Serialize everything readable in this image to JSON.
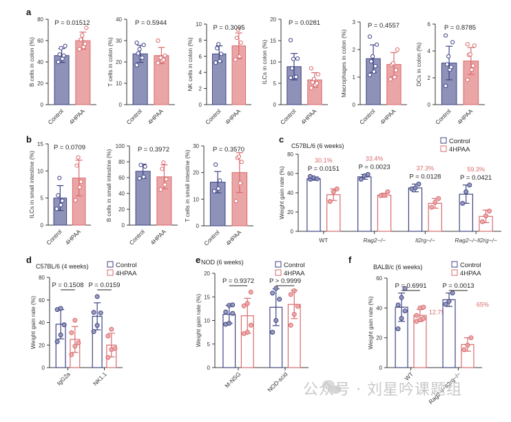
{
  "colors": {
    "control_fill": "#8e92b8",
    "control_stroke": "#3c4283",
    "treat_fill": "#eaa5a6",
    "treat_stroke": "#d9696c",
    "axis": "#333333"
  },
  "watermark": "公众号 · 刘星吟课题组",
  "chart_data": [
    {
      "id": "a1",
      "panel": "a",
      "type": "bar",
      "style": "filled",
      "ylabel": "B cells in colon (%)",
      "ylim": [
        0,
        80
      ],
      "yticks": [
        0,
        20,
        40,
        60,
        80
      ],
      "categories": [
        "Control",
        "4HPAA"
      ],
      "p_values": [
        "P = 0.01512"
      ],
      "series": [
        {
          "name": "Control",
          "mean": 46,
          "sd": 6.5,
          "points": [
            40,
            43,
            46,
            47,
            53,
            55
          ]
        },
        {
          "name": "4HPAA",
          "mean": 60,
          "sd": 8,
          "points": [
            52,
            54,
            57,
            61,
            65,
            72
          ]
        }
      ]
    },
    {
      "id": "a2",
      "panel": "",
      "type": "bar",
      "style": "filled",
      "ylabel": "T cells in colon (%)",
      "ylim": [
        0,
        40
      ],
      "yticks": [
        0,
        10,
        20,
        30,
        40
      ],
      "categories": [
        "Control",
        "4HPAA"
      ],
      "p_values": [
        "P = 0.5944"
      ],
      "series": [
        {
          "name": "Control",
          "mean": 23.8,
          "sd": 4,
          "points": [
            18.5,
            22,
            22,
            24,
            26,
            28,
            29
          ]
        },
        {
          "name": "4HPAA",
          "mean": 23,
          "sd": 3.8,
          "points": [
            19.5,
            20.5,
            21,
            22,
            22,
            23,
            30
          ]
        }
      ]
    },
    {
      "id": "a3",
      "panel": "",
      "type": "bar",
      "style": "filled",
      "ylabel": "NK cells in colon (%)",
      "ylim": [
        0,
        10
      ],
      "yticks": [
        0,
        2,
        4,
        6,
        8,
        10
      ],
      "categories": [
        "Control",
        "4HPAA"
      ],
      "p_values": [
        "P = 0.3095"
      ],
      "series": [
        {
          "name": "Control",
          "mean": 6.3,
          "sd": 1.0,
          "points": [
            5.2,
            5.4,
            6.3,
            7.0,
            7.5
          ]
        },
        {
          "name": "4HPAA",
          "mean": 7.3,
          "sd": 1.6,
          "points": [
            5.6,
            6.0,
            7.7,
            8.3,
            9.3
          ]
        }
      ]
    },
    {
      "id": "a4",
      "panel": "",
      "type": "bar",
      "style": "filled",
      "ylabel": "ILCs in colon (%)",
      "ylim": [
        0,
        20
      ],
      "yticks": [
        0,
        5,
        10,
        15,
        20
      ],
      "categories": [
        "Control",
        "4HPAA"
      ],
      "p_values": [
        "P = 0.0281"
      ],
      "series": [
        {
          "name": "Control",
          "mean": 8.9,
          "sd": 3.1,
          "points": [
            6.3,
            6.5,
            6.5,
            8.5,
            10.7,
            10.8,
            15.1
          ]
        },
        {
          "name": "4HPAA",
          "mean": 5.8,
          "sd": 1.7,
          "points": [
            3.9,
            4.6,
            5.0,
            5.2,
            6.0,
            7.1,
            8.5
          ]
        }
      ]
    },
    {
      "id": "a5",
      "panel": "",
      "type": "bar",
      "style": "filled",
      "ylabel": "Macrophages in colon (%)",
      "ylim": [
        0,
        3
      ],
      "yticks": [
        0,
        1,
        2,
        3
      ],
      "categories": [
        "Control",
        "4HPAA"
      ],
      "p_values": [
        "P = 0.4557"
      ],
      "series": [
        {
          "name": "Control",
          "mean": 1.67,
          "sd": 0.5,
          "points": [
            1.08,
            1.2,
            1.4,
            1.57,
            1.75,
            2.18,
            2.47
          ]
        },
        {
          "name": "4HPAA",
          "mean": 1.46,
          "sd": 0.43,
          "points": [
            0.92,
            1.0,
            1.25,
            1.45,
            1.5,
            2.0
          ]
        }
      ]
    },
    {
      "id": "a6",
      "panel": "",
      "type": "bar",
      "style": "filled",
      "ylabel": "DCs in colon (%)",
      "ylim": [
        0,
        6
      ],
      "yticks": [
        0,
        2,
        4,
        6
      ],
      "categories": [
        "Control",
        "4HPAA"
      ],
      "p_values": [
        "P = 0.8785"
      ],
      "series": [
        {
          "name": "Control",
          "mean": 3.1,
          "sd": 1.25,
          "points": [
            1.4,
            2.6,
            2.8,
            3.0,
            3.6,
            4.65,
            5.15
          ]
        },
        {
          "name": "4HPAA",
          "mean": 3.25,
          "sd": 1.0,
          "points": [
            1.85,
            2.6,
            2.9,
            3.7,
            3.75,
            4.4,
            4.5
          ]
        }
      ]
    },
    {
      "id": "b1",
      "panel": "b",
      "type": "bar",
      "style": "filled",
      "ylabel": "ILCs in small intestine (%)",
      "ylim": [
        0,
        15
      ],
      "yticks": [
        0,
        5,
        10,
        15
      ],
      "categories": [
        "Control",
        "4HPAA"
      ],
      "p_values": [
        "P = 0.0709"
      ],
      "series": [
        {
          "name": "Control",
          "mean": 5.0,
          "sd": 2.3,
          "points": [
            3.0,
            3.7,
            4.5,
            5.5,
            8.7
          ]
        },
        {
          "name": "4HPAA",
          "mean": 8.7,
          "sd": 3.3,
          "points": [
            4.6,
            7.0,
            8.0,
            11.0,
            12.5
          ]
        }
      ]
    },
    {
      "id": "b2",
      "panel": "",
      "type": "bar",
      "style": "filled",
      "ylabel": "B cells in small intestine (%)",
      "ylim": [
        0,
        100
      ],
      "yticks": [
        0,
        20,
        40,
        60,
        80,
        100
      ],
      "categories": [
        "Control",
        "4HPAA"
      ],
      "p_values": [
        "P = 0.3972"
      ],
      "series": [
        {
          "name": "Control",
          "mean": 68,
          "sd": 9,
          "points": [
            59,
            61,
            74,
            76
          ]
        },
        {
          "name": "4HPAA",
          "mean": 61,
          "sd": 15,
          "points": [
            45,
            51,
            58,
            71,
            79
          ]
        }
      ]
    },
    {
      "id": "b3",
      "panel": "",
      "type": "bar",
      "style": "filled",
      "ylabel": "T cells in small intestine (%)",
      "ylim": [
        0,
        30
      ],
      "yticks": [
        0,
        10,
        20,
        30
      ],
      "categories": [
        "Control",
        "4HPAA"
      ],
      "p_values": [
        "P = 0.3570"
      ],
      "series": [
        {
          "name": "Control",
          "mean": 16.4,
          "sd": 4,
          "points": [
            13.0,
            14.0,
            17.0,
            23.0
          ]
        },
        {
          "name": "4HPAA",
          "mean": 20,
          "sd": 7.5,
          "points": [
            9.3,
            16.0,
            24.0,
            25.5,
            26.0
          ]
        }
      ]
    },
    {
      "id": "c",
      "panel": "c",
      "type": "bar",
      "style": "open",
      "subtitle": "C57BL/6 (6 weeks)",
      "ylabel": "Weight gain rate (%)",
      "ylim": [
        0,
        80
      ],
      "yticks": [
        0,
        20,
        40,
        60,
        80
      ],
      "categories": [
        "WT",
        "Rag2−/−",
        "Il2rg−/−",
        "Rag2−/−Il2rg−/−"
      ],
      "p_values": [
        "P = 0.0151",
        "P = 0.0023",
        "P = 0.0128",
        "P = 0.0421"
      ],
      "percent_labels": [
        "30.1%",
        "33.4%",
        "37.3%",
        "59.3%"
      ],
      "legend": [
        "Control",
        "4HPAA"
      ],
      "series": [
        {
          "name": "Control",
          "means": [
            54.5,
            56.5,
            45,
            38.5
          ],
          "sds": [
            1.5,
            2.5,
            4,
            9.5
          ],
          "points": [
            [
              54,
              55.5,
              54.5,
              57
            ],
            [
              54,
              57.5,
              59
            ],
            [
              44,
              45,
              49
            ],
            [
              29,
              41,
              48
            ]
          ]
        },
        {
          "name": "4HPAA",
          "means": [
            38,
            37.5,
            29,
            15.5
          ],
          "sds": [
            6,
            2,
            5,
            6.5
          ],
          "points": [
            [
              31,
              41,
              44
            ],
            [
              37,
              37.5,
              41
            ],
            [
              25,
              30,
              34
            ],
            [
              10,
              16,
              21
            ]
          ]
        }
      ]
    },
    {
      "id": "d",
      "panel": "d",
      "type": "bar",
      "style": "open",
      "subtitle": "C57BL/6 (4 weeks)",
      "ylabel": "Weight gain rate (%)",
      "ylim": [
        0,
        80
      ],
      "yticks": [
        0,
        20,
        40,
        60,
        80
      ],
      "categories": [
        "IgG2a",
        "NK1.1"
      ],
      "p_values": [
        "P = 0.1508",
        "P = 0.0159"
      ],
      "legend": [
        "Control",
        "4HPAA"
      ],
      "series": [
        {
          "name": "Control",
          "means": [
            38.5,
            45.5
          ],
          "sds": [
            13,
            12
          ],
          "points": [
            [
              23,
              29,
              38,
              51.5,
              52.5
            ],
            [
              32,
              37.5,
              48.5,
              49,
              63
            ]
          ]
        },
        {
          "name": "4HPAA",
          "means": [
            25,
            20
          ],
          "sds": [
            11.5,
            10.5
          ],
          "points": [
            [
              11.5,
              19,
              22,
              31,
              42
            ],
            [
              9,
              16,
              17,
              28,
              34
            ]
          ]
        }
      ]
    },
    {
      "id": "e",
      "panel": "e",
      "type": "bar",
      "style": "open",
      "subtitle": "NOD (6 weeks)",
      "ylabel": "Weight gain rate (%)",
      "ylim": [
        0,
        20
      ],
      "yticks": [
        0,
        5,
        10,
        15,
        20
      ],
      "categories": [
        "M-NSG",
        "NOD-scid"
      ],
      "p_values": [
        "P = 0.9372",
        "P > 0.9999"
      ],
      "legend": [
        "Control",
        "4HPAA"
      ],
      "series": [
        {
          "name": "Control",
          "means": [
            11.3,
            12.8
          ],
          "sds": [
            1.9,
            3.9
          ],
          "points": [
            [
              9.2,
              9.4,
              11.5,
              11.8,
              13.2,
              13.3
            ],
            [
              7.5,
              10.0,
              14.5,
              15.8,
              16.8
            ]
          ]
        },
        {
          "name": "4HPAA",
          "means": [
            11,
            13.4
          ],
          "sds": [
            3.7,
            3.0
          ],
          "points": [
            [
              7.2,
              7.5,
              9.0,
              13.1,
              13.6,
              16.0
            ],
            [
              9.0,
              11.3,
              13.0,
              15.5,
              16.3
            ]
          ]
        }
      ]
    },
    {
      "id": "f",
      "panel": "f",
      "type": "bar",
      "style": "open",
      "subtitle": "BALB/c (6 weeks)",
      "ylabel": "Weight gain rate (%)",
      "ylim": [
        0,
        60
      ],
      "yticks": [
        0,
        20,
        40,
        60
      ],
      "categories": [
        "WT",
        "Rag2−/−Il2rg−/−"
      ],
      "p_values": [
        "P = 0.6991",
        "P = 0.0013"
      ],
      "percent_labels": [
        "12.79%",
        "65%"
      ],
      "legend": [
        "Control",
        "4HPAA"
      ],
      "series": [
        {
          "name": "Control",
          "means": [
            40.5,
            45.5
          ],
          "sds": [
            9.5,
            4.5
          ],
          "points": [
            [
              26,
              33,
              38,
              42,
              47,
              53
            ],
            [
              42.5,
              44.5,
              50
            ]
          ]
        },
        {
          "name": "4HPAA",
          "means": [
            35,
            15.5
          ],
          "sds": [
            4,
            4.5
          ],
          "points": [
            [
              31,
              32,
              33,
              35,
              40,
              40.5
            ],
            [
              12,
              15,
              20
            ]
          ]
        }
      ]
    }
  ]
}
